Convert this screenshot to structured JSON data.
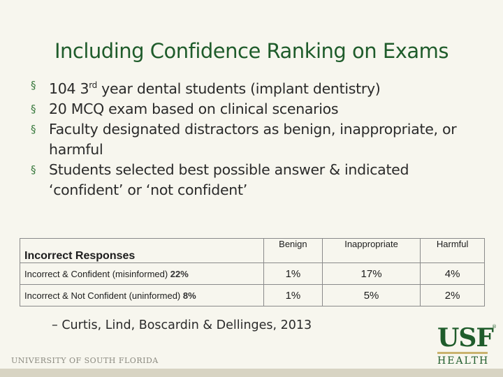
{
  "slide": {
    "title": "Including Confidence Ranking on Exams",
    "bullets": [
      {
        "pre": "104 3",
        "sup": "rd",
        "post": " year dental students (implant dentistry)"
      },
      {
        "pre": "20 MCQ exam based on clinical scenarios",
        "sup": "",
        "post": ""
      },
      {
        "pre": "Faculty designated distractors as benign, inappropriate, or harmful",
        "sup": "",
        "post": ""
      },
      {
        "pre": "Students selected best possible answer & indicated ‘confident’ or ‘not confident’",
        "sup": "",
        "post": ""
      }
    ],
    "bullet_marker": "§"
  },
  "table": {
    "header": {
      "label": "Incorrect Responses",
      "cols": [
        "Benign",
        "Inappropriate",
        "Harmful"
      ]
    },
    "rows": [
      {
        "label": "Incorrect & Confident (misinformed) ",
        "pct": "22%",
        "values": [
          "1%",
          "17%",
          "4%"
        ]
      },
      {
        "label": "Incorrect & Not Confident (uninformed) ",
        "pct": "8%",
        "values": [
          "1%",
          "5%",
          "2%"
        ]
      }
    ]
  },
  "citation": "–  Curtis, Lind, Boscardin & Dellinges, 2013",
  "footer": {
    "university": "UNIVERSITY OF SOUTH FLORIDA",
    "logo_top": "USF",
    "logo_bottom": "HEALTH",
    "tm": "®"
  },
  "colors": {
    "title_green": "#1f5c2b",
    "bullet_green": "#3a7a3f",
    "gold": "#c9b26e",
    "background": "#f7f6ee"
  }
}
